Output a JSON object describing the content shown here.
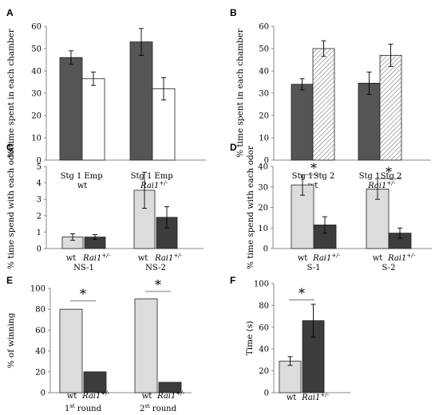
{
  "chart_data": [
    {
      "panel": "A",
      "type": "bar",
      "ylabel": "% time spent in each chamber",
      "ylim": [
        0,
        60
      ],
      "yticks": [
        0,
        10,
        20,
        30,
        40,
        50,
        60
      ],
      "groups": [
        {
          "label": "wt",
          "label_italic": false,
          "bars": [
            {
              "tick": "Stg 1",
              "value": 46,
              "err": 3,
              "fill": "dark"
            },
            {
              "tick": "Emp",
              "value": 36.5,
              "err": 3,
              "fill": "white"
            }
          ]
        },
        {
          "label": "Rai1",
          "label_sup": "+/-",
          "label_italic": true,
          "bars": [
            {
              "tick": "Stg 1",
              "value": 53,
              "err": 6,
              "fill": "dark"
            },
            {
              "tick": "Emp",
              "value": 32,
              "err": 5,
              "fill": "white"
            }
          ]
        }
      ],
      "significance": []
    },
    {
      "panel": "B",
      "type": "bar",
      "ylabel": "% time spent in each chamber",
      "ylim": [
        0,
        60
      ],
      "yticks": [
        0,
        10,
        20,
        30,
        40,
        50,
        60
      ],
      "groups": [
        {
          "label": "wt",
          "label_italic": false,
          "bars": [
            {
              "tick": "Stg 1",
              "value": 34,
              "err": 2.5,
              "fill": "dark"
            },
            {
              "tick": "Stg 2",
              "value": 50,
              "err": 3.5,
              "fill": "hatch"
            }
          ]
        },
        {
          "label": "Rai1",
          "label_sup": "+/-",
          "label_italic": true,
          "bars": [
            {
              "tick": "Stg 1",
              "value": 34.5,
              "err": 5,
              "fill": "dark"
            },
            {
              "tick": "Stg 2",
              "value": 47,
              "err": 5,
              "fill": "hatch"
            }
          ]
        }
      ],
      "significance": []
    },
    {
      "panel": "C",
      "type": "bar",
      "ylabel": "% time spend with each odor",
      "ylim": [
        0,
        5
      ],
      "yticks": [
        0,
        1,
        2,
        3,
        4,
        5
      ],
      "groups": [
        {
          "label": "NS-1",
          "label_italic": false,
          "bars": [
            {
              "tick": "wt",
              "value": 0.7,
              "err": 0.2,
              "fill": "light"
            },
            {
              "tick": "Rai1",
              "tick_sup": "+/-",
              "tick_italic": true,
              "value": 0.7,
              "err": 0.15,
              "fill": "dark"
            }
          ]
        },
        {
          "label": "NS-2",
          "label_italic": false,
          "bars": [
            {
              "tick": "wt",
              "value": 3.55,
              "err": 1.1,
              "fill": "light"
            },
            {
              "tick": "Rai1",
              "tick_sup": "+/-",
              "tick_italic": true,
              "value": 1.9,
              "err": 0.65,
              "fill": "dark"
            }
          ]
        }
      ],
      "significance": []
    },
    {
      "panel": "D",
      "type": "bar",
      "ylabel": "% time spend with each odor",
      "ylim": [
        0,
        40
      ],
      "yticks": [
        0,
        10,
        20,
        30,
        40
      ],
      "groups": [
        {
          "label": "S-1",
          "label_italic": false,
          "bars": [
            {
              "tick": "wt",
              "value": 31,
              "err": 5,
              "fill": "light"
            },
            {
              "tick": "Rai1",
              "tick_sup": "+/-",
              "tick_italic": true,
              "value": 11.5,
              "err": 4,
              "fill": "dark"
            }
          ]
        },
        {
          "label": "S-2",
          "label_italic": false,
          "bars": [
            {
              "tick": "wt",
              "value": 29,
              "err": 5,
              "fill": "light"
            },
            {
              "tick": "Rai1",
              "tick_sup": "+/-",
              "tick_italic": true,
              "value": 7.5,
              "err": 2.5,
              "fill": "dark"
            }
          ]
        }
      ],
      "significance": [
        {
          "group": 0,
          "y": 36,
          "text": "*"
        },
        {
          "group": 1,
          "y": 34,
          "text": "*"
        }
      ]
    },
    {
      "panel": "E",
      "type": "bar",
      "ylabel": "% of winning",
      "ylim": [
        0,
        100
      ],
      "yticks": [
        0,
        20,
        40,
        60,
        80,
        100
      ],
      "groups": [
        {
          "label": "1",
          "label_sup": "st",
          "label_rest": " round",
          "label_italic": false,
          "bars": [
            {
              "tick": "wt",
              "value": 80,
              "fill": "light"
            },
            {
              "tick": "Rai1",
              "tick_sup": "+/-",
              "tick_italic": true,
              "value": 20,
              "fill": "dark"
            }
          ]
        },
        {
          "label": "2",
          "label_sup": "st",
          "label_rest": " round",
          "label_italic": false,
          "bars": [
            {
              "tick": "wt",
              "value": 90,
              "fill": "light"
            },
            {
              "tick": "Rai1",
              "tick_sup": "+/-",
              "tick_italic": true,
              "value": 10,
              "fill": "dark"
            }
          ]
        }
      ],
      "significance": [
        {
          "group": 0,
          "y": 88,
          "text": "*"
        },
        {
          "group": 1,
          "y": 97,
          "text": "*"
        }
      ]
    },
    {
      "panel": "F",
      "type": "bar",
      "ylabel": "Time (s)",
      "ylim": [
        0,
        100
      ],
      "yticks": [
        0,
        20,
        40,
        60,
        80,
        100
      ],
      "groups": [
        {
          "label": "",
          "label_italic": false,
          "bars": [
            {
              "tick": "wt",
              "value": 29,
              "err": 4,
              "fill": "light"
            },
            {
              "tick": "Rai1",
              "tick_sup": "+/-",
              "tick_italic": true,
              "value": 66,
              "err": 15,
              "fill": "dark"
            }
          ]
        }
      ],
      "significance": [
        {
          "group": 0,
          "y": 85,
          "text": "*"
        }
      ]
    }
  ],
  "colors": {
    "dark": "#555555",
    "darkest": "#3c3c3c",
    "light": "#dcdcdc",
    "white": "#ffffff",
    "axis": "#888888",
    "border": "#222222"
  }
}
